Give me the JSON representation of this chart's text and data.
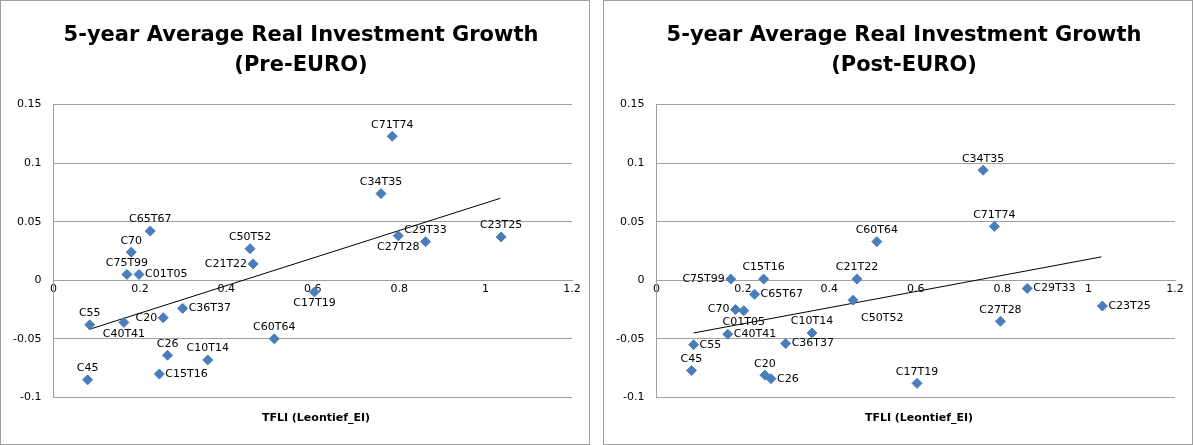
{
  "chart_data": [
    {
      "type": "scatter",
      "title": "5-year Average Real Investment Growth\n(Pre-EURO)",
      "xlabel": "TFLI (Leontief_EI)",
      "xlim": [
        0,
        1.2
      ],
      "xticks": [
        0,
        0.2,
        0.4,
        0.6,
        0.8,
        1,
        1.2
      ],
      "ylim": [
        -0.1,
        0.15
      ],
      "yticks": [
        -0.1,
        -0.05,
        0,
        0.05,
        0.1,
        0.15
      ],
      "grid": "y",
      "legend": false,
      "series": [
        {
          "marker": "diamond",
          "color": "#4a7ebb",
          "x": [
            0.784,
            0.758,
            0.798,
            0.861,
            1.036,
            0.604,
            0.511,
            0.357,
            0.245,
            0.264,
            0.079,
            0.084,
            0.163,
            0.254,
            0.299,
            0.224,
            0.18,
            0.17,
            0.198,
            0.455,
            0.462
          ],
          "values": [
            0.123,
            0.074,
            0.038,
            0.033,
            0.037,
            -0.01,
            -0.05,
            -0.068,
            -0.08,
            -0.064,
            -0.085,
            -0.038,
            -0.036,
            -0.032,
            -0.024,
            0.042,
            0.024,
            0.005,
            0.005,
            0.027,
            0.014
          ],
          "value_labels": [
            "C71T74",
            "C34T35",
            "C27T28",
            "C29T33",
            "C23T25",
            "C17T19",
            "C60T64",
            "C10T14",
            "C15T16",
            "C26",
            "C45",
            "C55",
            "C40T41",
            "C20",
            "C36T37",
            "C65T67",
            "C70",
            "C75T99",
            "C01T05",
            "C50T52",
            "C21T22"
          ]
        },
        {
          "type": "line",
          "marker": "none",
          "color": "#000000",
          "x": [
            0.082,
            1.034
          ],
          "values": [
            -0.042,
            0.07
          ]
        }
      ]
    },
    {
      "type": "scatter",
      "title": "5-year Average Real Investment Growth\n(Post-EURO)",
      "xlabel": "TFLI (Leontief_EI)",
      "xlim": [
        0,
        1.2
      ],
      "xticks": [
        0,
        0.2,
        0.4,
        0.6,
        0.8,
        1,
        1.2
      ],
      "ylim": [
        -0.1,
        0.15
      ],
      "yticks": [
        -0.1,
        -0.05,
        0,
        0.05,
        0.1,
        0.15
      ],
      "grid": "y",
      "legend": false,
      "series": [
        {
          "marker": "diamond",
          "color": "#4a7ebb",
          "x": [
            0.782,
            0.756,
            0.796,
            0.858,
            1.032,
            0.603,
            0.51,
            0.36,
            0.248,
            0.265,
            0.081,
            0.086,
            0.165,
            0.251,
            0.299,
            0.227,
            0.183,
            0.172,
            0.202,
            0.455,
            0.464
          ],
          "values": [
            0.046,
            0.094,
            -0.035,
            -0.007,
            -0.022,
            -0.088,
            0.033,
            -0.045,
            0.001,
            -0.084,
            -0.077,
            -0.055,
            -0.046,
            -0.081,
            -0.054,
            -0.012,
            -0.025,
            0.001,
            -0.026,
            -0.017,
            0.001
          ],
          "value_labels": [
            "C71T74",
            "C34T35",
            "C27T28",
            "C29T33",
            "C23T25",
            "C17T19",
            "C60T64",
            "C10T14",
            "C15T16",
            "C26",
            "C45",
            "C55",
            "C40T41",
            "C20",
            "C36T37",
            "C65T67",
            "C70",
            "C75T99",
            "C01T05",
            "C50T52",
            "C21T22"
          ]
        },
        {
          "type": "line",
          "marker": "none",
          "color": "#000000",
          "x": [
            0.086,
            1.03
          ],
          "values": [
            -0.045,
            0.02
          ]
        }
      ]
    }
  ]
}
